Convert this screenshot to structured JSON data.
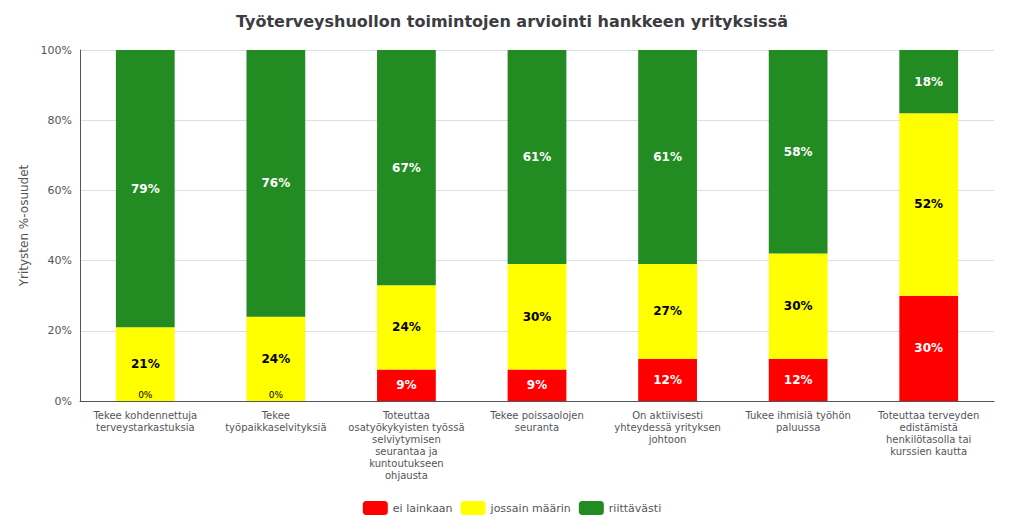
{
  "chart_data": {
    "type": "bar",
    "title": "Työterveyshuollon toimintojen arviointi hankkeen yrityksissä",
    "ylabel": "Yritysten %-osuudet",
    "categories": [
      "Tekee kohdennettuja\nterveystarkastuksia",
      "Tekee\ntyöpaikkaselvityksiä",
      "Toteuttaa\nosatyökykyisten työssä\nselviytymisen\nseurantaa ja\nkuntoutukseen\nohjausta",
      "Tekee poissaolojen\nseuranta",
      "On aktiivisesti\nyhteydessä yrityksen\njohtoon",
      "Tukee ihmisiä työhön\npaluussa",
      "Toteuttaa terveyden\nedistämistä\nhenkilötasolla tai\nkurssien kautta"
    ],
    "series": [
      {
        "name": "ei lainkaan",
        "color": "#ff0000",
        "values": [
          0,
          0,
          9,
          9,
          12,
          12,
          30
        ],
        "value_labels": [
          "0%",
          "0%",
          "9%",
          "9%",
          "12%",
          "12%",
          "30%"
        ]
      },
      {
        "name": "jossain määrin",
        "color": "#ffff00",
        "values": [
          21,
          24,
          24,
          30,
          27,
          30,
          52
        ],
        "value_labels": [
          "21%",
          "24%",
          "24%",
          "30%",
          "27%",
          "30%",
          "52%"
        ]
      },
      {
        "name": "riittävästi",
        "color": "#228b22",
        "values": [
          79,
          76,
          67,
          61,
          61,
          58,
          18
        ],
        "value_labels": [
          "79%",
          "76%",
          "67%",
          "61%",
          "61%",
          "58%",
          "18%"
        ]
      }
    ],
    "stacked": true,
    "data_labels": true,
    "ylim": [
      0,
      100
    ],
    "yticks": [
      {
        "value": 0,
        "label": "0%"
      },
      {
        "value": 20,
        "label": "20%"
      },
      {
        "value": 40,
        "label": "40%"
      },
      {
        "value": 60,
        "label": "60%"
      },
      {
        "value": 80,
        "label": "80%"
      },
      {
        "value": 100,
        "label": "100%"
      }
    ],
    "grid": true,
    "legend": "bottom"
  }
}
